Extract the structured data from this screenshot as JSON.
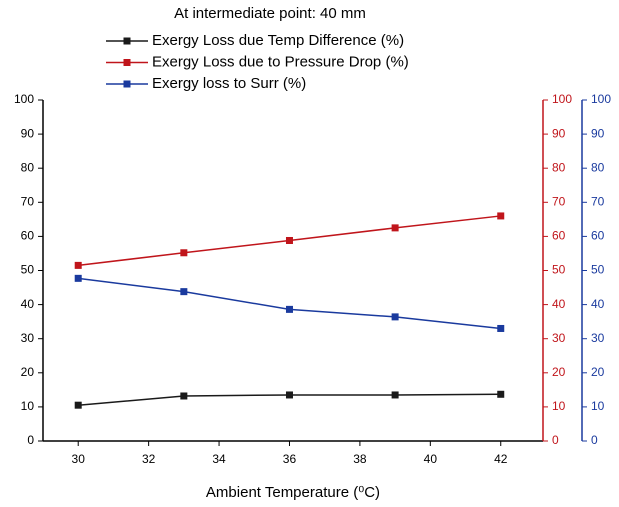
{
  "chart_data": {
    "type": "line",
    "title": "At intermediate point: 40 mm",
    "x_label": "Ambient Temperature (⁰C)",
    "x": [
      30,
      33,
      36,
      39,
      42
    ],
    "xlim": [
      29,
      43.2
    ],
    "xticks": [
      30,
      32,
      34,
      36,
      38,
      40,
      42
    ],
    "ylim": [
      0,
      100
    ],
    "yticks": [
      0,
      10,
      20,
      30,
      40,
      50,
      60,
      70,
      80,
      90,
      100
    ],
    "y_color": "#000000",
    "y2lim": [
      0,
      100
    ],
    "y2ticks": [
      0,
      10,
      20,
      30,
      40,
      50,
      60,
      70,
      80,
      90,
      100
    ],
    "y2_color": "#c0151b",
    "y3lim": [
      0,
      100
    ],
    "y3ticks": [
      0,
      10,
      20,
      30,
      40,
      50,
      60,
      70,
      80,
      90,
      100
    ],
    "y3_color": "#1a3a9e",
    "series": [
      {
        "name": "Exergy Loss due Temp Difference (%)",
        "color": "#1a1a1a",
        "axis": "y",
        "values": [
          10.5,
          13.2,
          13.5,
          13.5,
          13.7
        ]
      },
      {
        "name": "Exergy Loss due to Pressure Drop (%)",
        "color": "#c0151b",
        "axis": "y2",
        "values": [
          51.5,
          55.2,
          58.8,
          62.5,
          66
        ]
      },
      {
        "name": "Exergy loss to Surr (%)",
        "color": "#1a3a9e",
        "axis": "y3",
        "values": [
          47.7,
          43.8,
          38.6,
          36.4,
          33
        ]
      }
    ]
  }
}
